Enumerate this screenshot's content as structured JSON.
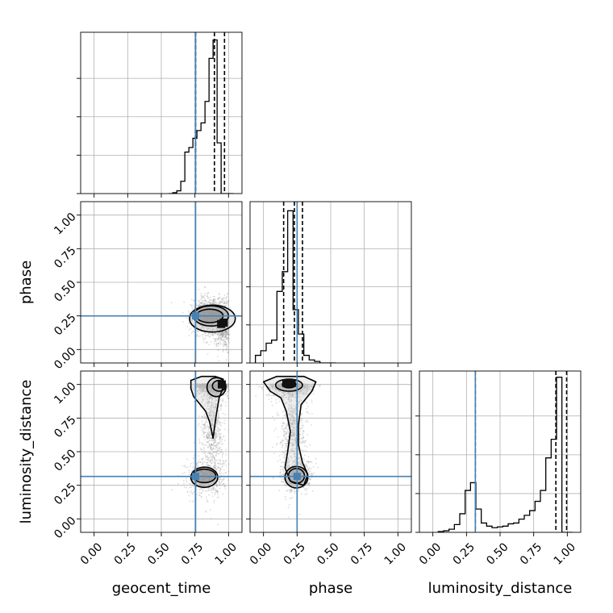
{
  "chart_data": {
    "type": "corner",
    "parameters": [
      "geocent_time",
      "phase",
      "luminosity_distance"
    ],
    "axis_range": [
      -0.1,
      1.1
    ],
    "ticks": [
      0.0,
      0.25,
      0.5,
      0.75,
      1.0
    ],
    "tick_labels": [
      "0.00",
      "0.25",
      "0.50",
      "0.75",
      "1.00"
    ],
    "grid": true,
    "colors": {
      "truth": "#4682b4",
      "hist": "#000000",
      "points": "#9a9a9a",
      "grid": "#b0b0b0"
    },
    "truths": {
      "geocent_time": 0.755,
      "phase": 0.25,
      "luminosity_distance": 0.316
    },
    "histograms": {
      "geocent_time": {
        "bin_edges": [
          0.555,
          0.585,
          0.615,
          0.645,
          0.675,
          0.705,
          0.735,
          0.765,
          0.795,
          0.825,
          0.855,
          0.885,
          0.915,
          0.945,
          0.975,
          1.005,
          1.035
        ],
        "counts": [
          0,
          0.006,
          0.018,
          0.08,
          0.27,
          0.3,
          0.36,
          0.41,
          0.46,
          0.6,
          0.88,
          1.0,
          0.33,
          0,
          0,
          0
        ],
        "quantiles": [
          0.755,
          0.895,
          0.97
        ],
        "ymax": 1.05
      },
      "phase": {
        "bin_edges": [
          -0.06,
          -0.02,
          0.02,
          0.06,
          0.1,
          0.14,
          0.18,
          0.22,
          0.26,
          0.3,
          0.34,
          0.38,
          0.42,
          0.46,
          0.5,
          0.54
        ],
        "counts": [
          0.05,
          0.08,
          0.13,
          0.15,
          0.47,
          0.6,
          1.0,
          0.35,
          0.19,
          0.05,
          0.02,
          0.01,
          0,
          0,
          0
        ],
        "quantiles": [
          0.15,
          0.23,
          0.29
        ],
        "ymax": 1.06
      },
      "luminosity_distance": {
        "bin_edges": [
          0.04,
          0.08,
          0.12,
          0.16,
          0.2,
          0.24,
          0.28,
          0.32,
          0.36,
          0.4,
          0.44,
          0.48,
          0.52,
          0.56,
          0.6,
          0.64,
          0.68,
          0.72,
          0.76,
          0.8,
          0.84,
          0.88,
          0.92,
          0.96,
          1.0,
          1.04
        ],
        "counts": [
          0.005,
          0.01,
          0.02,
          0.05,
          0.12,
          0.27,
          0.32,
          0.15,
          0.06,
          0.04,
          0.03,
          0.035,
          0.04,
          0.055,
          0.06,
          0.085,
          0.11,
          0.14,
          0.2,
          0.27,
          0.48,
          0.6,
          1.0,
          0.0,
          0.0
        ],
        "quantiles": [
          0.316,
          0.915,
          0.995
        ],
        "ymax": 1.04
      }
    },
    "scatter_2d": {
      "phase_vs_geocent_time": {
        "x_param": "geocent_time",
        "y_param": "phase",
        "clusters": [
          {
            "cx": 0.87,
            "cy": 0.25,
            "sx": 0.07,
            "sy": 0.07,
            "n": 1300
          },
          {
            "cx": 0.96,
            "cy": 0.16,
            "sx": 0.035,
            "sy": 0.08,
            "n": 450
          }
        ],
        "contours": [
          {
            "level": 1,
            "cx": 0.86,
            "cy": 0.25,
            "rx": 0.1,
            "ry": 0.05
          },
          {
            "level": 2,
            "cx": 0.87,
            "cy": 0.25,
            "rx": 0.13,
            "ry": 0.075
          },
          {
            "level": 3,
            "cx": 0.88,
            "cy": 0.23,
            "rx": 0.17,
            "ry": 0.1
          }
        ],
        "dense_cells": [
          {
            "x": 0.945,
            "y": 0.19
          },
          {
            "x": 0.965,
            "y": 0.2
          }
        ]
      },
      "luminosity_distance_vs_geocent_time": {
        "x_param": "geocent_time",
        "y_param": "luminosity_distance",
        "clusters": [
          {
            "cx": 0.88,
            "cy": 0.99,
            "sx": 0.06,
            "sy": 0.04,
            "n": 900
          },
          {
            "cx": 0.88,
            "cy": 0.66,
            "sx": 0.04,
            "sy": 0.2,
            "n": 700
          },
          {
            "cx": 0.83,
            "cy": 0.32,
            "sx": 0.07,
            "sy": 0.07,
            "n": 500
          }
        ],
        "contours": [
          {
            "level": 1,
            "cx": 0.93,
            "cy": 0.99,
            "rx": 0.05,
            "ry": 0.04
          },
          {
            "level": 2,
            "cx": 0.91,
            "cy": 0.98,
            "rx": 0.07,
            "ry": 0.07
          },
          {
            "level": 1,
            "cx": 0.82,
            "cy": 0.32,
            "rx": 0.085,
            "ry": 0.05
          },
          {
            "level": 2,
            "cx": 0.82,
            "cy": 0.31,
            "rx": 0.1,
            "ry": 0.075
          }
        ],
        "outer_outline": [
          [
            0.72,
            1.03
          ],
          [
            0.72,
            0.97
          ],
          [
            0.74,
            0.91
          ],
          [
            0.79,
            0.85
          ],
          [
            0.83,
            0.8
          ],
          [
            0.86,
            0.72
          ],
          [
            0.885,
            0.6
          ],
          [
            0.905,
            0.75
          ],
          [
            0.93,
            0.9
          ],
          [
            0.965,
            0.99
          ],
          [
            0.96,
            1.04
          ],
          [
            0.9,
            1.06
          ],
          [
            0.8,
            1.06
          ]
        ],
        "dense_cells": [
          {
            "x": 0.95,
            "y": 1.0
          }
        ]
      },
      "luminosity_distance_vs_phase": {
        "x_param": "phase",
        "y_param": "luminosity_distance",
        "clusters": [
          {
            "cx": 0.2,
            "cy": 0.99,
            "sx": 0.08,
            "sy": 0.04,
            "n": 900
          },
          {
            "cx": 0.22,
            "cy": 0.65,
            "sx": 0.05,
            "sy": 0.18,
            "n": 700
          },
          {
            "cx": 0.25,
            "cy": 0.32,
            "sx": 0.06,
            "sy": 0.06,
            "n": 500
          }
        ],
        "contours": [
          {
            "level": 1,
            "cx": 0.19,
            "cy": 1.0,
            "rx": 0.05,
            "ry": 0.025
          },
          {
            "level": 2,
            "cx": 0.19,
            "cy": 0.995,
            "rx": 0.1,
            "ry": 0.045
          },
          {
            "level": 1,
            "cx": 0.245,
            "cy": 0.32,
            "rx": 0.06,
            "ry": 0.055
          },
          {
            "level": 2,
            "cx": 0.245,
            "cy": 0.31,
            "rx": 0.085,
            "ry": 0.08
          }
        ],
        "outer_outline": [
          [
            0.0,
            1.02
          ],
          [
            0.05,
            0.95
          ],
          [
            0.13,
            0.9
          ],
          [
            0.17,
            0.8
          ],
          [
            0.2,
            0.65
          ],
          [
            0.18,
            0.5
          ],
          [
            0.16,
            0.38
          ],
          [
            0.2,
            0.28
          ],
          [
            0.3,
            0.25
          ],
          [
            0.33,
            0.33
          ],
          [
            0.29,
            0.42
          ],
          [
            0.26,
            0.55
          ],
          [
            0.26,
            0.7
          ],
          [
            0.28,
            0.85
          ],
          [
            0.36,
            0.95
          ],
          [
            0.39,
            1.02
          ],
          [
            0.3,
            1.06
          ],
          [
            0.1,
            1.06
          ]
        ],
        "dense_cells": [
          {
            "x": 0.17,
            "y": 1.01
          },
          {
            "x": 0.21,
            "y": 1.01
          }
        ]
      }
    }
  }
}
